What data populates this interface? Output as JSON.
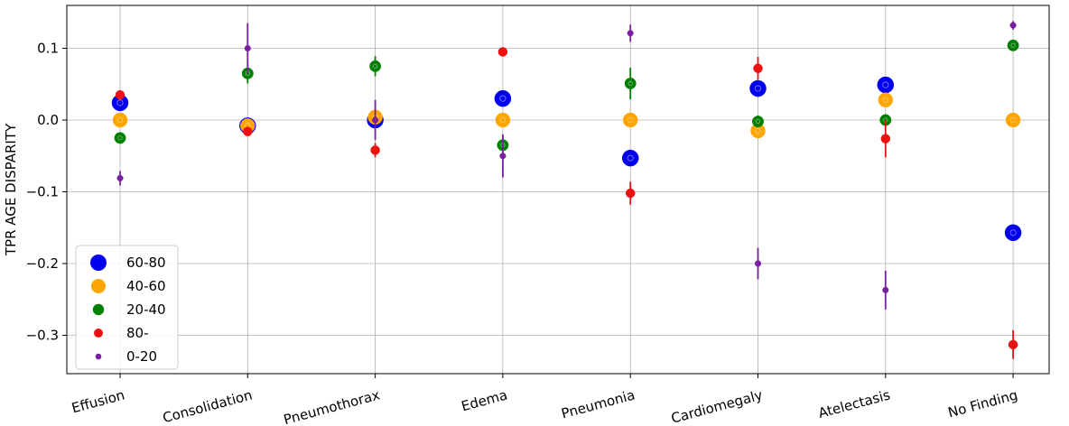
{
  "chart_data": {
    "type": "scatter",
    "title": "",
    "xlabel": "",
    "ylabel": "TPR AGE DISPARITY",
    "categories": [
      "Effusion",
      "Consolidation",
      "Pneumothorax",
      "Edema",
      "Pneumonia",
      "Cardiomegaly",
      "Atelectasis",
      "No Finding"
    ],
    "ylim": [
      -0.355,
      0.16
    ],
    "yticks": [
      {
        "value": 0.1,
        "label": "0.1"
      },
      {
        "value": 0.0,
        "label": "0.0"
      },
      {
        "value": -0.1,
        "label": "−0.1"
      },
      {
        "value": -0.2,
        "label": "−0.2"
      },
      {
        "value": -0.3,
        "label": "−0.3"
      }
    ],
    "grid": true,
    "legend_position": "bottom-left",
    "series": [
      {
        "name": "60-80",
        "color": "#0000ee",
        "marker_size": "largest",
        "values": [
          0.024,
          -0.008,
          0.0,
          0.03,
          -0.053,
          0.044,
          0.049,
          -0.157
        ],
        "errors": [
          0.008,
          0.005,
          0.005,
          0.008,
          0.006,
          0.008,
          0.008,
          0.006
        ]
      },
      {
        "name": "40-60",
        "color": "#ffa500",
        "marker_size": "large",
        "values": [
          0.0,
          -0.008,
          0.004,
          0.0,
          0.0,
          -0.015,
          0.028,
          0.0
        ],
        "errors": [
          0.005,
          0.005,
          0.005,
          0.005,
          0.005,
          0.008,
          0.008,
          0.004
        ]
      },
      {
        "name": "20-40",
        "color": "#008000",
        "marker_size": "medium",
        "values": [
          -0.025,
          0.065,
          0.075,
          -0.035,
          0.051,
          -0.002,
          0.0,
          0.104
        ],
        "errors": [
          0.006,
          0.014,
          0.014,
          0.012,
          0.022,
          0.008,
          0.008,
          0.006
        ]
      },
      {
        "name": "80-",
        "color": "#ee1111",
        "marker_size": "small",
        "values": [
          0.035,
          -0.016,
          -0.042,
          0.095,
          -0.102,
          0.072,
          -0.026,
          -0.313
        ],
        "errors": [
          0.006,
          0.006,
          0.01,
          0.006,
          0.016,
          0.016,
          0.026,
          0.02
        ]
      },
      {
        "name": "0-20",
        "color": "#7b1fa2",
        "marker_size": "smallest",
        "values": [
          -0.081,
          0.1,
          0.0,
          -0.05,
          0.121,
          -0.2,
          -0.237,
          0.132
        ],
        "errors": [
          0.01,
          0.035,
          0.028,
          0.03,
          0.012,
          0.022,
          0.027,
          0.006
        ]
      }
    ]
  }
}
